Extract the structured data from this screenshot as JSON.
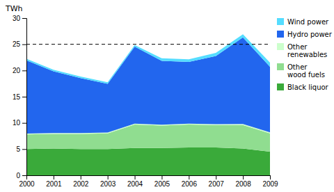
{
  "chart_data": {
    "type": "area",
    "stacked": true,
    "ylabel": "TWh",
    "x": [
      2000,
      2001,
      2002,
      2003,
      2004,
      2005,
      2006,
      2007,
      2008,
      2009
    ],
    "series": [
      {
        "name": "Black liquor",
        "color": "#3aaa3a",
        "values": [
          5.0,
          5.1,
          5.0,
          5.0,
          5.2,
          5.2,
          5.3,
          5.3,
          5.1,
          4.5
        ]
      },
      {
        "name": "Other\nwood fuels",
        "color": "#90dd90",
        "values": [
          2.8,
          2.8,
          2.9,
          3.0,
          4.5,
          4.3,
          4.4,
          4.3,
          4.5,
          3.5
        ]
      },
      {
        "name": "Other\nrenewables",
        "color": "#ccffcc",
        "values": [
          0.15,
          0.15,
          0.15,
          0.15,
          0.15,
          0.15,
          0.15,
          0.15,
          0.2,
          0.2
        ]
      },
      {
        "name": "Hydro power",
        "color": "#2266ee",
        "values": [
          14.0,
          11.8,
          10.5,
          9.3,
          14.7,
          12.2,
          11.8,
          13.0,
          16.5,
          12.5
        ]
      },
      {
        "name": "Wind power",
        "color": "#55ddff",
        "values": [
          0.3,
          0.3,
          0.3,
          0.3,
          0.3,
          0.5,
          0.5,
          0.6,
          0.6,
          0.8
        ]
      }
    ],
    "reference_line": 25,
    "xlim": [
      2000,
      2009
    ],
    "xticks": [
      2000,
      2001,
      2002,
      2003,
      2004,
      2005,
      2006,
      2007,
      2008,
      2009
    ],
    "ylim": [
      0,
      30
    ],
    "yticks": [
      0,
      5,
      10,
      15,
      20,
      25,
      30
    ],
    "grid": false,
    "legend": "right"
  }
}
